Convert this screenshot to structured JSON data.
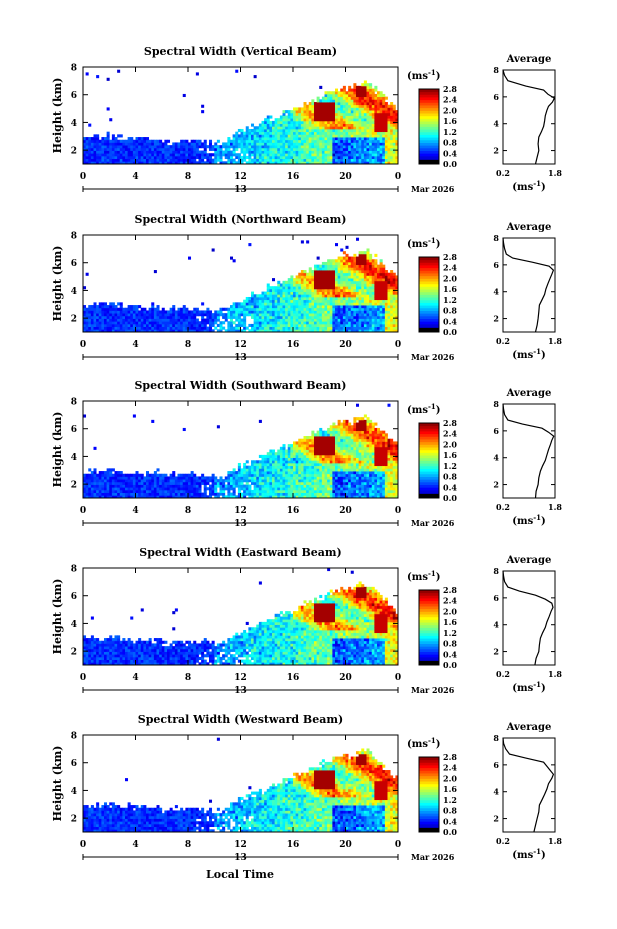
{
  "figure": {
    "colorbar_unit_label": "(ms",
    "colorbar_unit_exp": "-1",
    "colorbar_unit_close": ")",
    "average_title": "Average",
    "x_axis_title": "Local Time"
  },
  "chart_data": [
    {
      "type": "heatmap",
      "title": "Spectral Width (Vertical Beam)",
      "ylabel": "Height (km)",
      "xlim": [
        0,
        24
      ],
      "ylim": [
        1,
        8
      ],
      "xticks": [
        "0",
        "4",
        "8",
        "12",
        "16",
        "20",
        "0"
      ],
      "yticks": [
        "2",
        "4",
        "6",
        "8"
      ],
      "date_day": "13",
      "date_label": "Mar 2026",
      "colorbar": {
        "range": [
          0.0,
          2.8
        ],
        "ticks": [
          "2.8",
          "2.4",
          "2.0",
          "1.6",
          "1.2",
          "0.8",
          "0.4",
          "0.0"
        ]
      },
      "average_profile": {
        "xlim": [
          0.2,
          1.8
        ],
        "xticks": [
          "0.2",
          "1.8"
        ],
        "yticks": [
          "2",
          "4",
          "6",
          "8"
        ],
        "unit": "(ms",
        "unit_exp": "-1",
        "unit_close": ")",
        "height": [
          1.0,
          1.5,
          2.0,
          2.5,
          3.0,
          3.4,
          3.8,
          4.2,
          4.6,
          5.0,
          5.3,
          5.6,
          5.9,
          6.2,
          6.5,
          6.8,
          7.2,
          7.6,
          8.0
        ],
        "width": [
          1.2,
          1.25,
          1.3,
          1.28,
          1.3,
          1.38,
          1.45,
          1.48,
          1.5,
          1.55,
          1.6,
          1.72,
          1.78,
          1.58,
          1.45,
          0.9,
          0.35,
          0.25,
          0.2
        ]
      }
    },
    {
      "type": "heatmap",
      "title": "Spectral Width (Northward Beam)",
      "ylabel": "Height (km)",
      "xlim": [
        0,
        24
      ],
      "ylim": [
        1,
        8
      ],
      "xticks": [
        "0",
        "4",
        "8",
        "12",
        "16",
        "20",
        "0"
      ],
      "yticks": [
        "2",
        "4",
        "6",
        "8"
      ],
      "date_day": "13",
      "date_label": "Mar 2026",
      "colorbar": {
        "range": [
          0.0,
          2.8
        ],
        "ticks": [
          "2.8",
          "2.4",
          "2.0",
          "1.6",
          "1.2",
          "0.8",
          "0.4",
          "0.0"
        ]
      },
      "average_profile": {
        "xlim": [
          0.2,
          1.8
        ],
        "xticks": [
          "0.2",
          "1.8"
        ],
        "yticks": [
          "2",
          "4",
          "6",
          "8"
        ],
        "unit": "(ms",
        "unit_exp": "-1",
        "unit_close": ")",
        "height": [
          1.0,
          1.5,
          2.0,
          2.5,
          3.0,
          3.4,
          3.8,
          4.2,
          4.6,
          5.0,
          5.3,
          5.6,
          5.9,
          6.2,
          6.5,
          6.8,
          7.2,
          7.6,
          8.0
        ],
        "width": [
          1.2,
          1.25,
          1.28,
          1.3,
          1.32,
          1.4,
          1.48,
          1.52,
          1.58,
          1.65,
          1.7,
          1.75,
          1.62,
          1.1,
          0.5,
          0.3,
          0.25,
          0.22,
          0.2
        ]
      }
    },
    {
      "type": "heatmap",
      "title": "Spectral Width (Southward Beam)",
      "ylabel": "Height (km)",
      "xlim": [
        0,
        24
      ],
      "ylim": [
        1,
        8
      ],
      "xticks": [
        "0",
        "4",
        "8",
        "12",
        "16",
        "20",
        "0"
      ],
      "yticks": [
        "2",
        "4",
        "6",
        "8"
      ],
      "date_day": "13",
      "date_label": "Mar 2026",
      "colorbar": {
        "range": [
          0.0,
          2.8
        ],
        "ticks": [
          "2.8",
          "2.4",
          "2.0",
          "1.6",
          "1.2",
          "0.8",
          "0.4",
          "0.0"
        ]
      },
      "average_profile": {
        "xlim": [
          0.2,
          1.8
        ],
        "xticks": [
          "0.2",
          "1.8"
        ],
        "yticks": [
          "2",
          "4",
          "6",
          "8"
        ],
        "unit": "(ms",
        "unit_exp": "-1",
        "unit_close": ")",
        "height": [
          1.0,
          1.5,
          2.0,
          2.5,
          3.0,
          3.4,
          3.8,
          4.2,
          4.6,
          5.0,
          5.3,
          5.6,
          5.9,
          6.2,
          6.5,
          6.8,
          7.2,
          7.6,
          8.0
        ],
        "width": [
          1.2,
          1.22,
          1.28,
          1.3,
          1.35,
          1.42,
          1.5,
          1.55,
          1.6,
          1.66,
          1.7,
          1.76,
          1.6,
          1.4,
          0.8,
          0.35,
          0.25,
          0.22,
          0.2
        ]
      }
    },
    {
      "type": "heatmap",
      "title": "Spectral Width (Eastward Beam)",
      "ylabel": "Height (km)",
      "xlim": [
        0,
        24
      ],
      "ylim": [
        1,
        8
      ],
      "xticks": [
        "0",
        "4",
        "8",
        "12",
        "16",
        "20",
        "0"
      ],
      "yticks": [
        "2",
        "4",
        "6",
        "8"
      ],
      "date_day": "13",
      "date_label": "Mar 2026",
      "colorbar": {
        "range": [
          0.0,
          2.8
        ],
        "ticks": [
          "2.8",
          "2.4",
          "2.0",
          "1.6",
          "1.2",
          "0.8",
          "0.4",
          "0.0"
        ]
      },
      "average_profile": {
        "xlim": [
          0.2,
          1.8
        ],
        "xticks": [
          "0.2",
          "1.8"
        ],
        "yticks": [
          "2",
          "4",
          "6",
          "8"
        ],
        "unit": "(ms",
        "unit_exp": "-1",
        "unit_close": ")",
        "height": [
          1.0,
          1.5,
          2.0,
          2.5,
          3.0,
          3.4,
          3.8,
          4.2,
          4.6,
          5.0,
          5.3,
          5.6,
          5.9,
          6.2,
          6.5,
          6.8,
          7.2,
          7.6,
          8.0
        ],
        "width": [
          1.18,
          1.22,
          1.3,
          1.32,
          1.35,
          1.42,
          1.5,
          1.55,
          1.62,
          1.68,
          1.74,
          1.7,
          1.5,
          1.2,
          0.7,
          0.35,
          0.25,
          0.22,
          0.2
        ]
      }
    },
    {
      "type": "heatmap",
      "title": "Spectral Width (Westward Beam)",
      "ylabel": "Height (km)",
      "xlim": [
        0,
        24
      ],
      "ylim": [
        1,
        8
      ],
      "xticks": [
        "0",
        "4",
        "8",
        "12",
        "16",
        "20",
        "0"
      ],
      "yticks": [
        "2",
        "4",
        "6",
        "8"
      ],
      "date_day": "13",
      "date_label": "Mar 2026",
      "colorbar": {
        "range": [
          0.0,
          2.8
        ],
        "ticks": [
          "2.8",
          "2.4",
          "2.0",
          "1.6",
          "1.2",
          "0.8",
          "0.4",
          "0.0"
        ]
      },
      "average_profile": {
        "xlim": [
          0.2,
          1.8
        ],
        "xticks": [
          "0.2",
          "1.8"
        ],
        "yticks": [
          "2",
          "4",
          "6",
          "8"
        ],
        "unit": "(ms",
        "unit_exp": "-1",
        "unit_close": ")",
        "height": [
          1.0,
          1.5,
          2.0,
          2.5,
          3.0,
          3.4,
          3.8,
          4.2,
          4.6,
          5.0,
          5.3,
          5.6,
          5.9,
          6.2,
          6.5,
          6.8,
          7.2,
          7.6,
          8.0
        ],
        "width": [
          1.15,
          1.2,
          1.25,
          1.3,
          1.32,
          1.4,
          1.48,
          1.55,
          1.6,
          1.7,
          1.75,
          1.65,
          1.55,
          1.45,
          0.9,
          0.4,
          0.28,
          0.22,
          0.2
        ]
      }
    }
  ]
}
